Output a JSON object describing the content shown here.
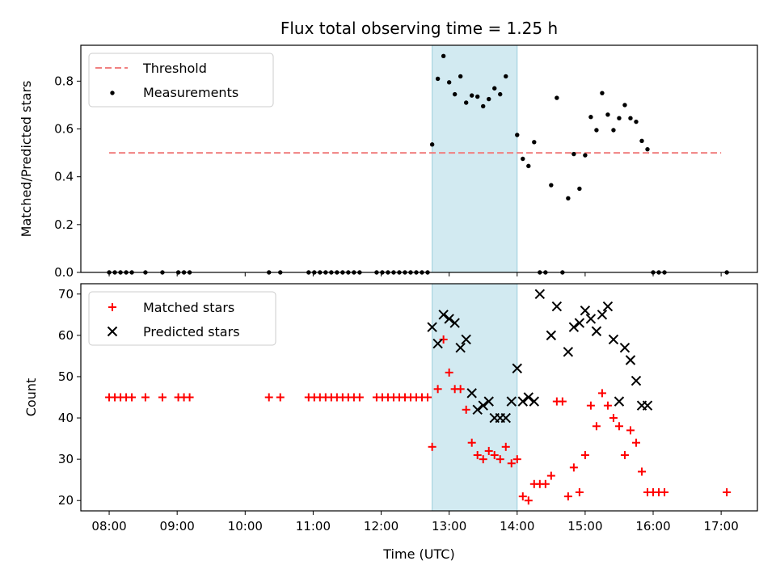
{
  "chart_data": [
    {
      "type": "scatter",
      "title": "Flux total observing time = 1.25 h",
      "ylabel": "Matched/Predicted stars",
      "ylim": [
        0,
        0.95
      ],
      "yticks": [
        "0.0",
        "0.2",
        "0.4",
        "0.6",
        "0.8"
      ],
      "shaded_region": [
        "12:45",
        "14:00"
      ],
      "shade_color": "#add8e6",
      "legend": "top-left",
      "series": [
        {
          "name": "Threshold",
          "style": "dashed-line",
          "color": "#f08080",
          "x": [
            "08:00",
            "17:00"
          ],
          "y": [
            0.5,
            0.5
          ]
        },
        {
          "name": "Measurements",
          "style": "dots",
          "color": "#000000",
          "x": [
            "08:00",
            "08:05",
            "08:10",
            "08:15",
            "08:20",
            "08:32",
            "08:47",
            "09:01",
            "09:06",
            "09:11",
            "10:21",
            "10:31",
            "10:56",
            "11:01",
            "11:06",
            "11:11",
            "11:16",
            "11:21",
            "11:26",
            "11:31",
            "11:36",
            "11:41",
            "11:56",
            "12:01",
            "12:06",
            "12:11",
            "12:16",
            "12:21",
            "12:26",
            "12:31",
            "12:36",
            "12:41",
            "12:45",
            "12:50",
            "12:55",
            "13:00",
            "13:05",
            "13:10",
            "13:15",
            "13:20",
            "13:25",
            "13:30",
            "13:35",
            "13:40",
            "13:45",
            "13:50",
            "14:00",
            "14:05",
            "14:10",
            "14:15",
            "14:20",
            "14:25",
            "14:30",
            "14:35",
            "14:40",
            "14:45",
            "14:50",
            "14:55",
            "15:00",
            "15:05",
            "15:10",
            "15:15",
            "15:20",
            "15:25",
            "15:30",
            "15:35",
            "15:40",
            "15:45",
            "15:50",
            "15:55",
            "16:00",
            "16:05",
            "16:10",
            "17:05"
          ],
          "y": [
            0,
            0,
            0,
            0,
            0,
            0,
            0,
            0,
            0,
            0,
            0,
            0,
            0,
            0,
            0,
            0,
            0,
            0,
            0,
            0,
            0,
            0,
            0,
            0,
            0,
            0,
            0,
            0,
            0,
            0,
            0,
            0,
            0.535,
            0.81,
            0.905,
            0.795,
            0.745,
            0.82,
            0.71,
            0.74,
            0.735,
            0.695,
            0.725,
            0.77,
            0.745,
            0.82,
            0.575,
            0.475,
            0.445,
            0.545,
            0,
            0,
            0.365,
            0.73,
            0,
            0.31,
            0.495,
            0.35,
            0.49,
            0.65,
            0.595,
            0.75,
            0.66,
            0.595,
            0.645,
            0.7,
            0.645,
            0.63,
            0.55,
            0.515,
            0,
            0,
            0,
            0
          ]
        }
      ]
    },
    {
      "type": "scatter",
      "xlabel": "Time (UTC)",
      "ylabel": "Count",
      "ylim": [
        17.5,
        72.5
      ],
      "yticks": [
        "20",
        "30",
        "40",
        "50",
        "60",
        "70"
      ],
      "xticks": [
        "08:00",
        "09:00",
        "10:00",
        "11:00",
        "12:00",
        "13:00",
        "14:00",
        "15:00",
        "16:00",
        "17:00"
      ],
      "xlim": [
        "07:35",
        "17:32"
      ],
      "shaded_region": [
        "12:45",
        "14:00"
      ],
      "shade_color": "#add8e6",
      "legend": "top-left",
      "series": [
        {
          "name": "Matched stars",
          "marker": "plus",
          "color": "#ff0000",
          "x": [
            "08:00",
            "08:05",
            "08:10",
            "08:15",
            "08:20",
            "08:32",
            "08:47",
            "09:01",
            "09:06",
            "09:11",
            "10:21",
            "10:31",
            "10:56",
            "11:01",
            "11:06",
            "11:11",
            "11:16",
            "11:21",
            "11:26",
            "11:31",
            "11:36",
            "11:41",
            "11:56",
            "12:01",
            "12:06",
            "12:11",
            "12:16",
            "12:21",
            "12:26",
            "12:31",
            "12:36",
            "12:41",
            "12:45",
            "12:50",
            "12:55",
            "13:00",
            "13:05",
            "13:10",
            "13:15",
            "13:20",
            "13:25",
            "13:30",
            "13:35",
            "13:40",
            "13:45",
            "13:50",
            "13:55",
            "14:00",
            "14:05",
            "14:10",
            "14:15",
            "14:20",
            "14:25",
            "14:30",
            "14:35",
            "14:40",
            "14:45",
            "14:50",
            "14:55",
            "15:00",
            "15:05",
            "15:10",
            "15:15",
            "15:20",
            "15:25",
            "15:30",
            "15:35",
            "15:40",
            "15:45",
            "15:50",
            "15:55",
            "16:00",
            "16:05",
            "16:10",
            "17:05"
          ],
          "y": [
            45,
            45,
            45,
            45,
            45,
            45,
            45,
            45,
            45,
            45,
            45,
            45,
            45,
            45,
            45,
            45,
            45,
            45,
            45,
            45,
            45,
            45,
            45,
            45,
            45,
            45,
            45,
            45,
            45,
            45,
            45,
            45,
            33,
            47,
            59,
            51,
            47,
            47,
            42,
            34,
            31,
            30,
            32,
            31,
            30,
            33,
            29,
            30,
            21,
            20,
            24,
            24,
            24,
            26,
            44,
            44,
            21,
            28,
            22,
            31,
            43,
            38,
            46,
            43,
            40,
            38,
            31,
            37,
            34,
            27,
            22,
            22,
            22,
            22,
            22
          ]
        },
        {
          "name": "Predicted stars",
          "marker": "x",
          "color": "#000000",
          "x": [
            "12:45",
            "12:50",
            "12:55",
            "13:00",
            "13:05",
            "13:10",
            "13:15",
            "13:20",
            "13:25",
            "13:30",
            "13:35",
            "13:40",
            "13:45",
            "13:50",
            "13:55",
            "14:00",
            "14:05",
            "14:10",
            "14:15",
            "14:20",
            "14:30",
            "14:35",
            "14:45",
            "14:50",
            "14:55",
            "15:00",
            "15:05",
            "15:10",
            "15:15",
            "15:20",
            "15:25",
            "15:30",
            "15:35",
            "15:40",
            "15:45",
            "15:50",
            "15:55"
          ],
          "y": [
            62,
            58,
            65,
            64,
            63,
            57,
            59,
            46,
            42,
            43,
            44,
            40,
            40,
            40,
            44,
            52,
            44,
            45,
            44,
            70,
            60,
            67,
            56,
            62,
            63,
            66,
            64,
            61,
            65,
            67,
            59,
            44,
            57,
            54,
            49,
            43,
            43
          ]
        }
      ]
    }
  ]
}
